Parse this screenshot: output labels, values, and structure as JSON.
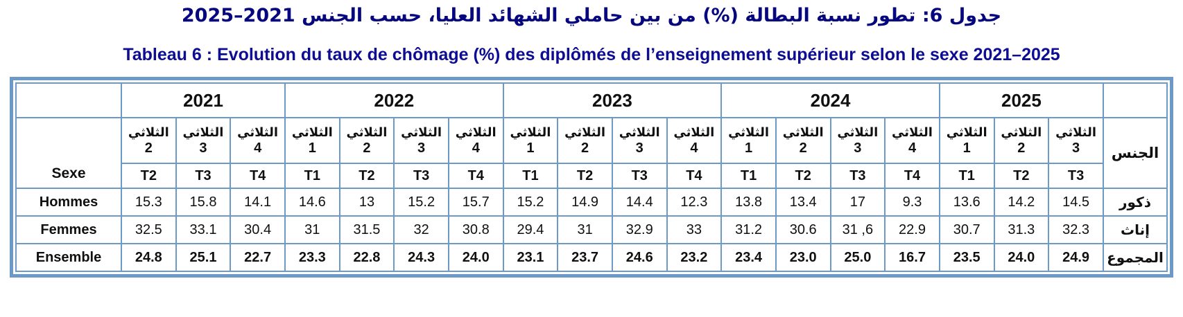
{
  "titles": {
    "arabic": "جدول 6: تطور نسبة البطالة (%) من بين حاملي الشهائد العليا، حسب الجنس 2021–2025",
    "french": "Tableau 6 : Evolution du taux de chômage (%) des diplômés de l’enseignement supérieur selon le sexe 2021–2025"
  },
  "colors": {
    "border_blue": "#6b9ac9",
    "title_navy_arabic": "#06067e",
    "title_navy_french": "#0d0d94"
  },
  "table": {
    "corner_left_label": "Sexe",
    "corner_right_label": "الجنس",
    "years": [
      {
        "label": "2021",
        "colspan": 3
      },
      {
        "label": "2022",
        "colspan": 4
      },
      {
        "label": "2023",
        "colspan": 4
      },
      {
        "label": "2024",
        "colspan": 4
      },
      {
        "label": "2025",
        "colspan": 3
      }
    ],
    "columns": [
      {
        "quarter_word": "الثلاثي",
        "quarter_num": "2",
        "t_label": "T2"
      },
      {
        "quarter_word": "الثلاثي",
        "quarter_num": "3",
        "t_label": "T3"
      },
      {
        "quarter_word": "الثلاثي",
        "quarter_num": "4",
        "t_label": "T4"
      },
      {
        "quarter_word": "الثلاثي",
        "quarter_num": "1",
        "t_label": "T1"
      },
      {
        "quarter_word": "الثلاثي",
        "quarter_num": "2",
        "t_label": "T2"
      },
      {
        "quarter_word": "الثلاثي",
        "quarter_num": "3",
        "t_label": "T3"
      },
      {
        "quarter_word": "الثلاثي",
        "quarter_num": "4",
        "t_label": "T4"
      },
      {
        "quarter_word": "الثلاثي",
        "quarter_num": "1",
        "t_label": "T1"
      },
      {
        "quarter_word": "الثلاثي",
        "quarter_num": "2",
        "t_label": "T2"
      },
      {
        "quarter_word": "الثلاثي",
        "quarter_num": "3",
        "t_label": "T3"
      },
      {
        "quarter_word": "الثلاثي",
        "quarter_num": "4",
        "t_label": "T4"
      },
      {
        "quarter_word": "الثلاثي",
        "quarter_num": "1",
        "t_label": "T1"
      },
      {
        "quarter_word": "الثلاثي",
        "quarter_num": "2",
        "t_label": "T2"
      },
      {
        "quarter_word": "الثلاثي",
        "quarter_num": "3",
        "t_label": "T3"
      },
      {
        "quarter_word": "الثلاثي",
        "quarter_num": "4",
        "t_label": "T4"
      },
      {
        "quarter_word": "الثلاثي",
        "quarter_num": "1",
        "t_label": "T1"
      },
      {
        "quarter_word": "الثلاثي",
        "quarter_num": "2",
        "t_label": "T2"
      },
      {
        "quarter_word": "الثلاثي",
        "quarter_num": "3",
        "t_label": "T3"
      }
    ],
    "rows": [
      {
        "label_fr": "Hommes",
        "label_ar": "ذكور",
        "bold": false,
        "values": [
          "15.3",
          "15.8",
          "14.1",
          "14.6",
          "13",
          "15.2",
          "15.7",
          "15.2",
          "14.9",
          "14.4",
          "12.3",
          "13.8",
          "13.4",
          "17",
          "9.3",
          "13.6",
          "14.2",
          "14.5"
        ]
      },
      {
        "label_fr": "Femmes",
        "label_ar": "إناث",
        "bold": false,
        "values": [
          "32.5",
          "33.1",
          "30.4",
          "31",
          "31.5",
          "32",
          "30.8",
          "29.4",
          "31",
          "32.9",
          "33",
          "31.2",
          "30.6",
          "31 ,6",
          "22.9",
          "30.7",
          "31.3",
          "32.3"
        ]
      },
      {
        "label_fr": "Ensemble",
        "label_ar": "المجموع",
        "bold": true,
        "values": [
          "24.8",
          "25.1",
          "22.7",
          "23.3",
          "22.8",
          "24.3",
          "24.0",
          "23.1",
          "23.7",
          "24.6",
          "23.2",
          "23.4",
          "23.0",
          "25.0",
          "16.7",
          "23.5",
          "24.0",
          "24.9"
        ]
      }
    ]
  }
}
